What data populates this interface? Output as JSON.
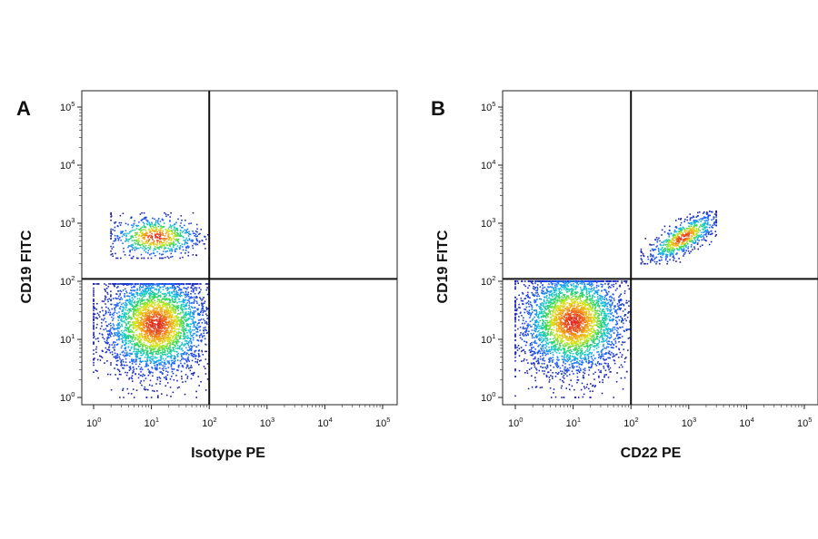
{
  "chart_data": [
    {
      "type": "scatter",
      "panel_label": "A",
      "xlabel": "Isotype PE",
      "ylabel": "CD19 FITC",
      "x_scale": "log",
      "y_scale": "log",
      "xlim": [
        1,
        100000
      ],
      "ylim": [
        1,
        100000
      ],
      "x_ticks": [
        {
          "base": "10",
          "exp": "0"
        },
        {
          "base": "10",
          "exp": "1"
        },
        {
          "base": "10",
          "exp": "2"
        },
        {
          "base": "10",
          "exp": "3"
        },
        {
          "base": "10",
          "exp": "4"
        },
        {
          "base": "10",
          "exp": "5"
        }
      ],
      "y_ticks": [
        {
          "base": "10",
          "exp": "0"
        },
        {
          "base": "10",
          "exp": "1"
        },
        {
          "base": "10",
          "exp": "2"
        },
        {
          "base": "10",
          "exp": "3"
        },
        {
          "base": "10",
          "exp": "4"
        },
        {
          "base": "10",
          "exp": "5"
        }
      ],
      "quadrant_gate": {
        "x": 100,
        "y": 110
      },
      "populations": [
        {
          "description": "CD19 negative",
          "center": {
            "x": 12,
            "y": 18
          },
          "approx_x_range": [
            1,
            100
          ],
          "approx_y_range": [
            1,
            90
          ],
          "relative_density": "high"
        },
        {
          "description": "CD19 positive",
          "center": {
            "x": 12,
            "y": 580
          },
          "approx_x_range": [
            2,
            100
          ],
          "approx_y_range": [
            250,
            1500
          ],
          "relative_density": "medium"
        }
      ],
      "grid": false,
      "colormap": [
        "#1a1aa8",
        "#1f5fff",
        "#19c8d8",
        "#2fd55a",
        "#d8e81e",
        "#f5a21a",
        "#e0281e"
      ]
    },
    {
      "type": "scatter",
      "panel_label": "B",
      "xlabel": "CD22 PE",
      "ylabel": "CD19 FITC",
      "x_scale": "log",
      "y_scale": "log",
      "xlim": [
        1,
        100000
      ],
      "ylim": [
        1,
        100000
      ],
      "x_ticks": [
        {
          "base": "10",
          "exp": "0"
        },
        {
          "base": "10",
          "exp": "1"
        },
        {
          "base": "10",
          "exp": "2"
        },
        {
          "base": "10",
          "exp": "3"
        },
        {
          "base": "10",
          "exp": "4"
        },
        {
          "base": "10",
          "exp": "5"
        }
      ],
      "y_ticks": [
        {
          "base": "10",
          "exp": "0"
        },
        {
          "base": "10",
          "exp": "1"
        },
        {
          "base": "10",
          "exp": "2"
        },
        {
          "base": "10",
          "exp": "3"
        },
        {
          "base": "10",
          "exp": "4"
        },
        {
          "base": "10",
          "exp": "5"
        }
      ],
      "quadrant_gate": {
        "x": 100,
        "y": 110
      },
      "populations": [
        {
          "description": "CD19 negative CD22 negative",
          "center": {
            "x": 10,
            "y": 20
          },
          "approx_x_range": [
            1,
            100
          ],
          "approx_y_range": [
            1,
            100
          ],
          "relative_density": "high"
        },
        {
          "description": "CD19 positive CD22 positive",
          "center": {
            "x": 800,
            "y": 560
          },
          "approx_x_range": [
            150,
            3000
          ],
          "approx_y_range": [
            200,
            1600
          ],
          "relative_density": "medium"
        }
      ],
      "grid": false,
      "colormap": [
        "#1a1aa8",
        "#1f5fff",
        "#19c8d8",
        "#2fd55a",
        "#d8e81e",
        "#f5a21a",
        "#e0281e"
      ]
    }
  ]
}
